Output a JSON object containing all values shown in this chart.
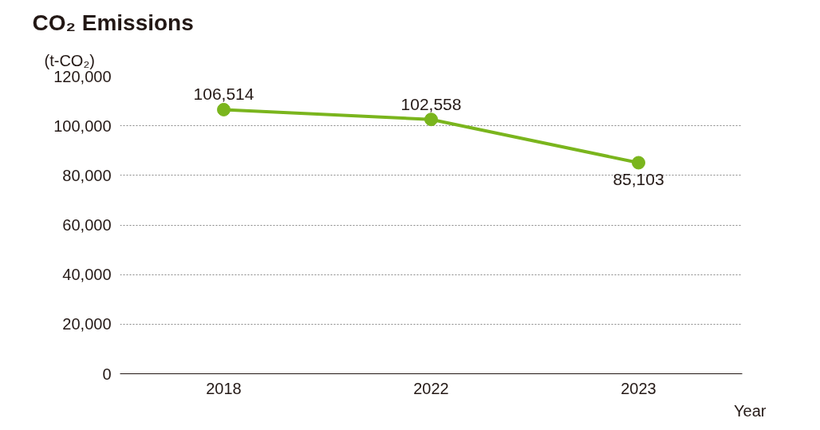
{
  "chart_data": {
    "type": "line",
    "title": "CO₂ Emissions",
    "ylabel": "(t-CO₂)",
    "xlabel": "Year",
    "categories": [
      "2018",
      "2022",
      "2023"
    ],
    "series": [
      {
        "color": "#7ab51d",
        "values": [
          106514,
          102558,
          85103
        ],
        "value_labels": [
          "106,514",
          "102,558",
          "85,103"
        ]
      }
    ],
    "ylim": [
      0,
      120000
    ],
    "yticks": [
      0,
      {
        "value": 20000,
        "label": "20,000"
      },
      {
        "value": 40000,
        "label": "40,000"
      },
      {
        "value": 60000,
        "label": "60,000"
      },
      {
        "value": 80000,
        "label": "80,000"
      },
      {
        "value": 100000,
        "label": "100,000"
      },
      {
        "value": 120000,
        "label": "120,000"
      }
    ],
    "grid": "y",
    "marker": "circle",
    "line_style": "solid"
  }
}
